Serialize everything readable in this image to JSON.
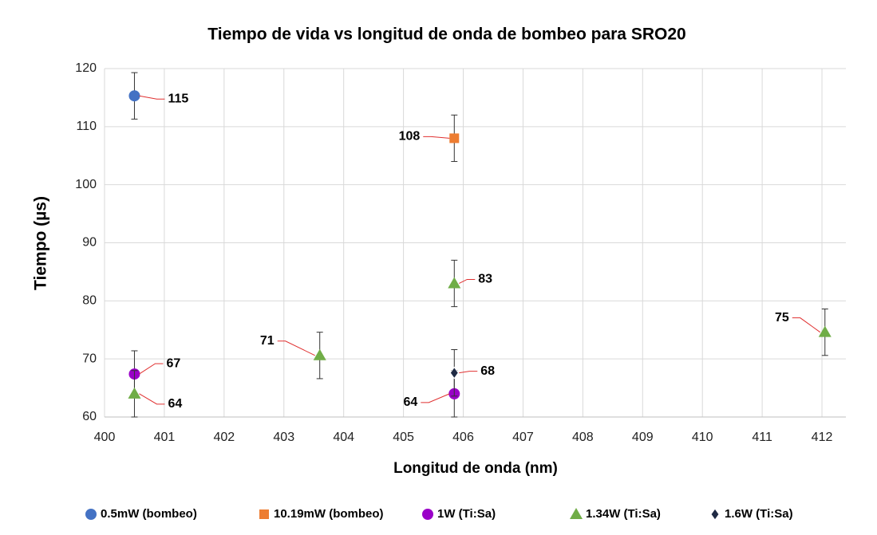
{
  "chart_data": {
    "type": "scatter",
    "title": "Tiempo de vida vs longitud de onda de bombeo para SRO20",
    "x_label": "Longitud de onda (nm)",
    "y_label": "Tiempo (µs)",
    "xlim": [
      400,
      412.4
    ],
    "ylim": [
      60,
      120
    ],
    "xticks": [
      400,
      401,
      402,
      403,
      404,
      405,
      406,
      407,
      408,
      409,
      410,
      411,
      412
    ],
    "yticks": [
      60,
      70,
      80,
      90,
      100,
      110,
      120
    ],
    "grid": true,
    "legend": "bottom",
    "series": [
      {
        "name": "0.5mW (bombeo)",
        "color": "#4472c4",
        "marker": "circle",
        "x": [
          400.5
        ],
        "values": [
          115.3
        ],
        "errors": [
          4
        ],
        "value_labels": [
          "115"
        ]
      },
      {
        "name": "10.19mW (bombeo)",
        "color": "#ed7d31",
        "marker": "square",
        "x": [
          405.85
        ],
        "values": [
          108
        ],
        "errors": [
          4
        ],
        "value_labels": [
          "108"
        ]
      },
      {
        "name": "1W (Ti:Sa)",
        "color": "#9a00c8",
        "marker": "circle",
        "x": [
          400.5,
          405.85
        ],
        "values": [
          67.4,
          64
        ],
        "errors": [
          4,
          4
        ],
        "value_labels": [
          "67",
          "64"
        ]
      },
      {
        "name": "1.34W (Ti:Sa)",
        "color": "#70ad47",
        "marker": "triangle",
        "x": [
          400.5,
          403.6,
          405.85,
          412.05
        ],
        "values": [
          64,
          70.6,
          83,
          74.6
        ],
        "errors": [
          4,
          4,
          4,
          4
        ],
        "value_labels": [
          "64",
          "71",
          "83",
          "75"
        ]
      },
      {
        "name": "1.6W (Ti:Sa)",
        "color": "#1f2a44",
        "marker": "diamond",
        "x": [
          405.85
        ],
        "values": [
          67.6
        ],
        "errors": [
          4
        ],
        "value_labels": [
          "68"
        ]
      }
    ]
  }
}
